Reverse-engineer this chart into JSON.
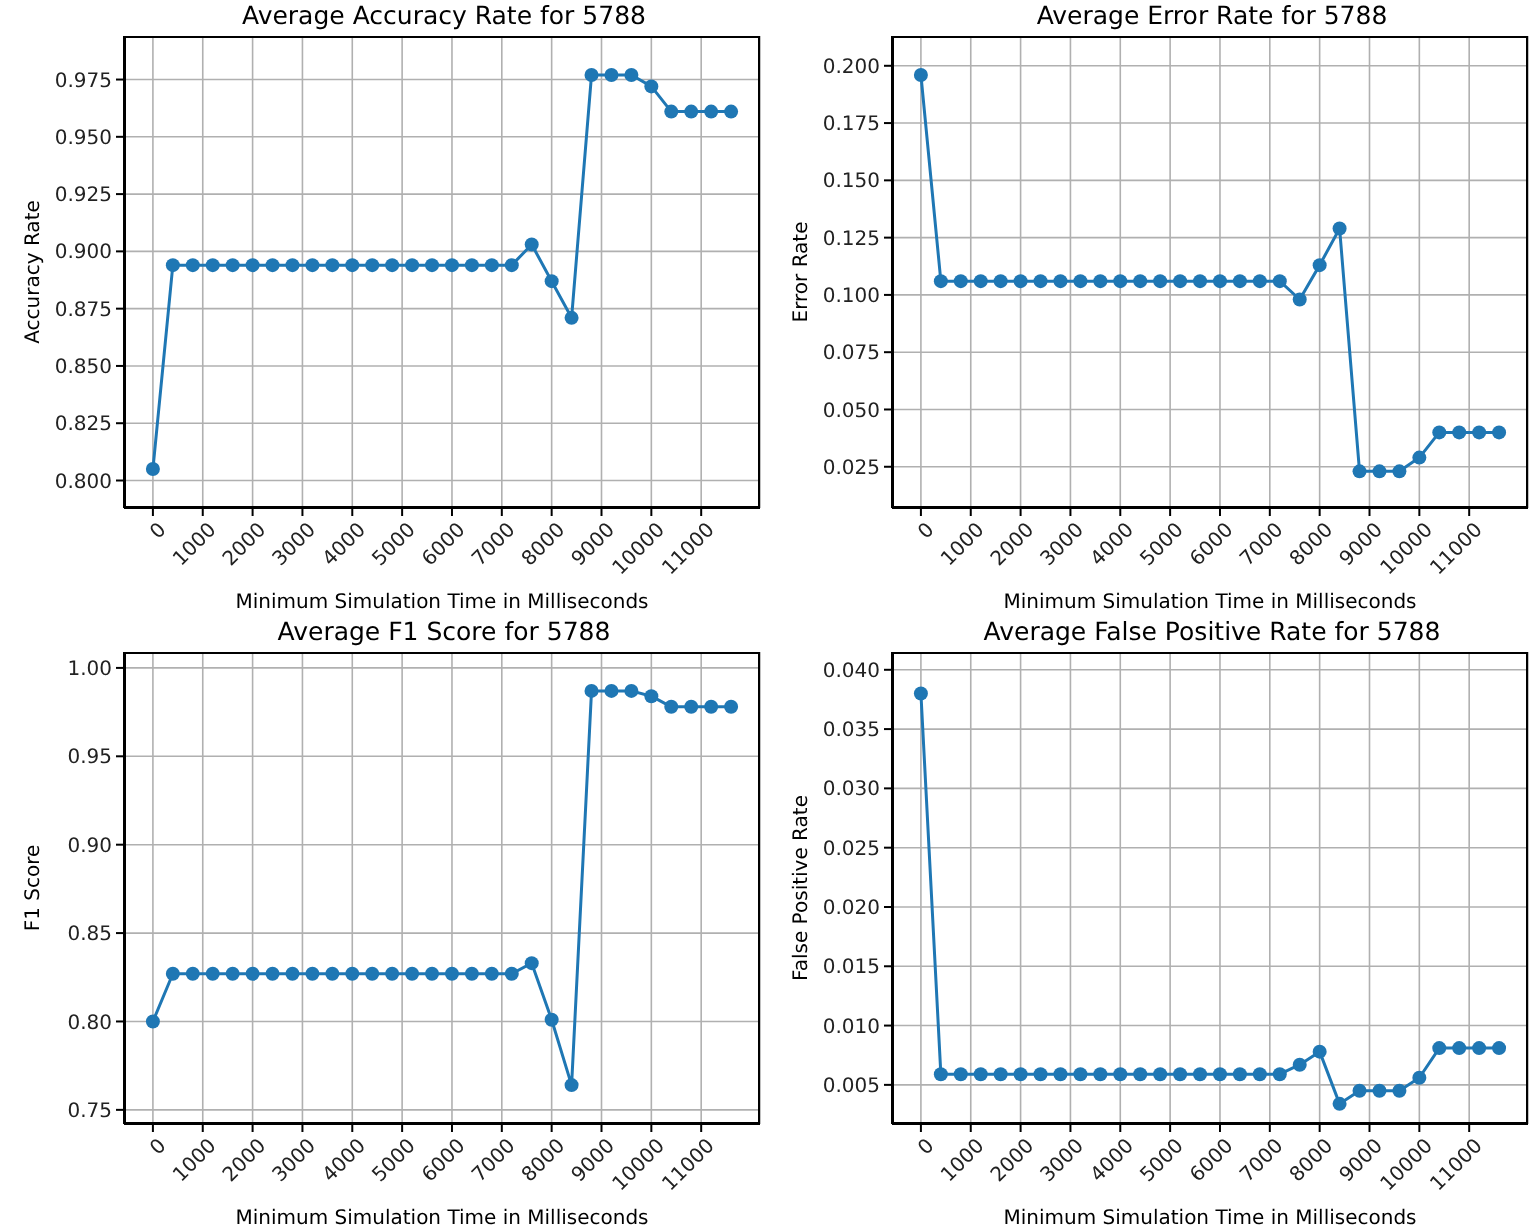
{
  "chart_data": [
    {
      "type": "line",
      "title": "Average Accuracy Rate for 5788",
      "xlabel": "Minimum Simulation Time in Milliseconds",
      "ylabel": "Accuracy Rate",
      "x": [
        0,
        400,
        800,
        1200,
        1600,
        2000,
        2400,
        2800,
        3200,
        3600,
        4000,
        4400,
        4800,
        5200,
        5600,
        6000,
        6400,
        6800,
        7200,
        7600,
        8000,
        8400,
        8800,
        9200,
        9600,
        10000,
        10400,
        10800,
        11200,
        11600
      ],
      "series": [
        {
          "color": "#1f77b4",
          "values": [
            0.805,
            0.894,
            0.894,
            0.894,
            0.894,
            0.894,
            0.894,
            0.894,
            0.894,
            0.894,
            0.894,
            0.894,
            0.894,
            0.894,
            0.894,
            0.894,
            0.894,
            0.894,
            0.894,
            0.903,
            0.887,
            0.871,
            0.977,
            0.977,
            0.977,
            0.972,
            0.961,
            0.961,
            0.961,
            0.961
          ]
        }
      ],
      "xlim": [
        -580,
        12180
      ],
      "xticks": [
        0,
        1000,
        2000,
        3000,
        4000,
        5000,
        6000,
        7000,
        8000,
        9000,
        10000,
        11000
      ],
      "ylim": [
        0.788,
        0.994
      ],
      "yticks": [
        {
          "value": 0.8,
          "label": "0.800"
        },
        0.825,
        {
          "value": 0.85,
          "label": "0.850"
        },
        0.875,
        {
          "value": 0.9,
          "label": "0.900"
        },
        0.925,
        {
          "value": 0.95,
          "label": "0.950"
        },
        0.975
      ],
      "grid": true,
      "marker": "circle"
    },
    {
      "type": "line",
      "title": "Average Error Rate for 5788",
      "xlabel": "Minimum Simulation Time in Milliseconds",
      "ylabel": "Error Rate",
      "x": [
        0,
        400,
        800,
        1200,
        1600,
        2000,
        2400,
        2800,
        3200,
        3600,
        4000,
        4400,
        4800,
        5200,
        5600,
        6000,
        6400,
        6800,
        7200,
        7600,
        8000,
        8400,
        8800,
        9200,
        9600,
        10000,
        10400,
        10800,
        11200,
        11600
      ],
      "series": [
        {
          "color": "#1f77b4",
          "values": [
            0.196,
            0.106,
            0.106,
            0.106,
            0.106,
            0.106,
            0.106,
            0.106,
            0.106,
            0.106,
            0.106,
            0.106,
            0.106,
            0.106,
            0.106,
            0.106,
            0.106,
            0.106,
            0.106,
            0.098,
            0.113,
            0.129,
            0.023,
            0.023,
            0.023,
            0.029,
            0.04,
            0.04,
            0.04,
            0.04
          ]
        }
      ],
      "xlim": [
        -580,
        12180
      ],
      "xticks": [
        0,
        1000,
        2000,
        3000,
        4000,
        5000,
        6000,
        7000,
        8000,
        9000,
        10000,
        11000
      ],
      "ylim": [
        0.007,
        0.213
      ],
      "yticks": [
        0.025,
        {
          "value": 0.05,
          "label": "0.050"
        },
        0.075,
        {
          "value": 0.1,
          "label": "0.100"
        },
        0.125,
        {
          "value": 0.15,
          "label": "0.150"
        },
        0.175,
        {
          "value": 0.2,
          "label": "0.200"
        }
      ],
      "grid": true,
      "marker": "circle"
    },
    {
      "type": "line",
      "title": "Average F1 Score for 5788",
      "xlabel": "Minimum Simulation Time in Milliseconds",
      "ylabel": "F1 Score",
      "x": [
        0,
        400,
        800,
        1200,
        1600,
        2000,
        2400,
        2800,
        3200,
        3600,
        4000,
        4400,
        4800,
        5200,
        5600,
        6000,
        6400,
        6800,
        7200,
        7600,
        8000,
        8400,
        8800,
        9200,
        9600,
        10000,
        10400,
        10800,
        11200,
        11600
      ],
      "series": [
        {
          "color": "#1f77b4",
          "values": [
            0.8,
            0.827,
            0.827,
            0.827,
            0.827,
            0.827,
            0.827,
            0.827,
            0.827,
            0.827,
            0.827,
            0.827,
            0.827,
            0.827,
            0.827,
            0.827,
            0.827,
            0.827,
            0.827,
            0.833,
            0.801,
            0.764,
            0.987,
            0.987,
            0.987,
            0.984,
            0.978,
            0.978,
            0.978,
            0.978
          ]
        }
      ],
      "xlim": [
        -580,
        12180
      ],
      "xticks": [
        0,
        1000,
        2000,
        3000,
        4000,
        5000,
        6000,
        7000,
        8000,
        9000,
        10000,
        11000
      ],
      "ylim": [
        0.742,
        1.009
      ],
      "yticks": [
        0.75,
        {
          "value": 0.8,
          "label": "0.80"
        },
        0.85,
        {
          "value": 0.9,
          "label": "0.90"
        },
        0.95,
        {
          "value": 1.0,
          "label": "1.00"
        }
      ],
      "grid": true,
      "marker": "circle"
    },
    {
      "type": "line",
      "title": "Average False Positive Rate for 5788",
      "xlabel": "Minimum Simulation Time in Milliseconds",
      "ylabel": "False Positive Rate",
      "x": [
        0,
        400,
        800,
        1200,
        1600,
        2000,
        2400,
        2800,
        3200,
        3600,
        4000,
        4400,
        4800,
        5200,
        5600,
        6000,
        6400,
        6800,
        7200,
        7600,
        8000,
        8400,
        8800,
        9200,
        9600,
        10000,
        10400,
        10800,
        11200,
        11600
      ],
      "series": [
        {
          "color": "#1f77b4",
          "values": [
            0.038,
            0.0059,
            0.0059,
            0.0059,
            0.0059,
            0.0059,
            0.0059,
            0.0059,
            0.0059,
            0.0059,
            0.0059,
            0.0059,
            0.0059,
            0.0059,
            0.0059,
            0.0059,
            0.0059,
            0.0059,
            0.0059,
            0.0067,
            0.0078,
            0.0034,
            0.0045,
            0.0045,
            0.0045,
            0.0056,
            0.0081,
            0.0081,
            0.0081,
            0.0081
          ]
        }
      ],
      "xlim": [
        -580,
        12180
      ],
      "xticks": [
        0,
        1000,
        2000,
        3000,
        4000,
        5000,
        6000,
        7000,
        8000,
        9000,
        10000,
        11000
      ],
      "ylim": [
        0.0017,
        0.0415
      ],
      "yticks": [
        0.005,
        {
          "value": 0.01,
          "label": "0.010"
        },
        0.015,
        {
          "value": 0.02,
          "label": "0.020"
        },
        0.025,
        {
          "value": 0.03,
          "label": "0.030"
        },
        0.035,
        {
          "value": 0.04,
          "label": "0.040"
        }
      ],
      "grid": true,
      "marker": "circle"
    }
  ]
}
